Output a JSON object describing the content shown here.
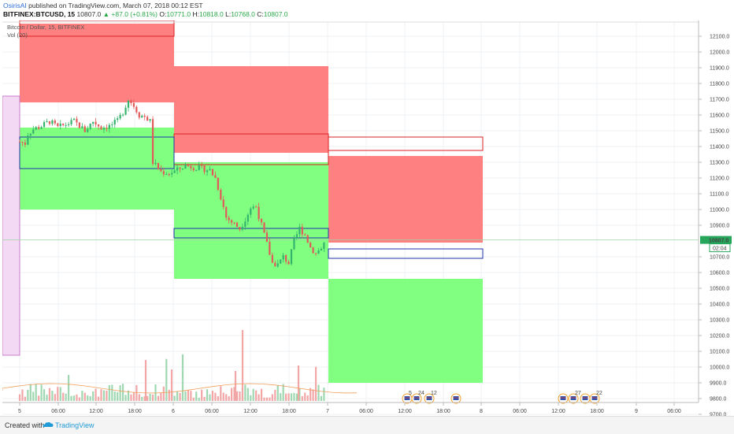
{
  "header": {
    "user": "OsirisAI",
    "published": "published on TradingView.com, March 07, 2018 00:12 EST",
    "symbol": "BITFINEX:BTCUSD, 15",
    "last": "10807.0",
    "change": "▲ +87.0 (+0.81%)",
    "o_label": "O:",
    "o_value": "10771.0",
    "h_label": "H:",
    "h_value": "10818.0",
    "l_label": "L:",
    "l_value": "10768.0",
    "c_label": "C:",
    "c_value": "10807.0"
  },
  "chart_legend": {
    "title": "Bitcoin / Dollar, 15, BITFINEX",
    "volume": "Vol (20)"
  },
  "footer": {
    "created_with": "Created with",
    "brand": "TradingView"
  },
  "colors": {
    "up": "#33b36b",
    "down": "#e35a5a",
    "supply_zone": "#ff8080",
    "demand_zone": "#80ff80",
    "price_tag": "#26a65b",
    "accent": "#2f6fd6"
  },
  "price_axis": {
    "ticks": [
      "12100.0",
      "12000.0",
      "11900.0",
      "11800.0",
      "11700.0",
      "11600.0",
      "11500.0",
      "11400.0",
      "11300.0",
      "11200.0",
      "11100.0",
      "11000.0",
      "10900.0",
      "10700.0",
      "10600.0",
      "10500.0",
      "10400.0",
      "10300.0",
      "10200.0",
      "10100.0",
      "10000.0",
      "9900.0",
      "9800.0",
      "9700.0"
    ],
    "last_price": "10807.0",
    "countdown": "02:04"
  },
  "time_axis": {
    "ticks": [
      "5",
      "06:00",
      "12:00",
      "18:00",
      "6",
      "06:00",
      "12:00",
      "18:00",
      "7",
      "06:00",
      "12:00",
      "18:00",
      "8",
      "06:00",
      "12:00",
      "18:00",
      "9",
      "06:00"
    ]
  },
  "event_markers": [
    "5",
    "24",
    "12",
    "27",
    "22"
  ],
  "chart_data": {
    "type": "candlestick",
    "instrument": "BITFINEX:BTCUSD",
    "interval": "15",
    "ylim": [
      9650,
      12180
    ],
    "last": 10807.0,
    "zones": [
      {
        "kind": "supply",
        "from": 11680,
        "to": 12180
      },
      {
        "kind": "demand",
        "from": 11000,
        "to": 11520
      },
      {
        "kind": "supply",
        "from": 11360,
        "to": 11910
      },
      {
        "kind": "demand",
        "from": 10560,
        "to": 11300
      },
      {
        "kind": "supply",
        "from": 10790,
        "to": 11340
      },
      {
        "kind": "demand",
        "from": 9900,
        "to": 10560
      }
    ],
    "ranges": [
      {
        "from": 11260,
        "to": 11460
      },
      {
        "from": 10820,
        "to": 10880
      },
      {
        "from": 10690,
        "to": 10750
      }
    ],
    "close_path": [
      [
        0,
        11430
      ],
      [
        2,
        11420
      ],
      [
        3,
        11480
      ],
      [
        5,
        11510
      ],
      [
        8,
        11530
      ],
      [
        11,
        11560
      ],
      [
        14,
        11520
      ],
      [
        17,
        11540
      ],
      [
        20,
        11560
      ],
      [
        24,
        11500
      ],
      [
        27,
        11560
      ],
      [
        30,
        11520
      ],
      [
        33,
        11530
      ],
      [
        36,
        11560
      ],
      [
        38,
        11620
      ],
      [
        40,
        11700
      ],
      [
        42,
        11660
      ],
      [
        44,
        11600
      ],
      [
        46,
        11590
      ],
      [
        48,
        11560
      ],
      [
        49,
        11300
      ],
      [
        52,
        11240
      ],
      [
        55,
        11230
      ],
      [
        58,
        11250
      ],
      [
        61,
        11280
      ],
      [
        64,
        11270
      ],
      [
        67,
        11260
      ],
      [
        70,
        11250
      ],
      [
        72,
        11200
      ],
      [
        74,
        11080
      ],
      [
        76,
        10950
      ],
      [
        78,
        10920
      ],
      [
        81,
        10880
      ],
      [
        83,
        10940
      ],
      [
        85,
        11010
      ],
      [
        87,
        11020
      ],
      [
        89,
        10900
      ],
      [
        91,
        10780
      ],
      [
        93,
        10660
      ],
      [
        95,
        10650
      ],
      [
        97,
        10700
      ],
      [
        99,
        10660
      ],
      [
        101,
        10800
      ],
      [
        103,
        10880
      ],
      [
        105,
        10840
      ],
      [
        107,
        10760
      ],
      [
        109,
        10720
      ],
      [
        111,
        10760
      ],
      [
        113,
        10807
      ]
    ]
  }
}
